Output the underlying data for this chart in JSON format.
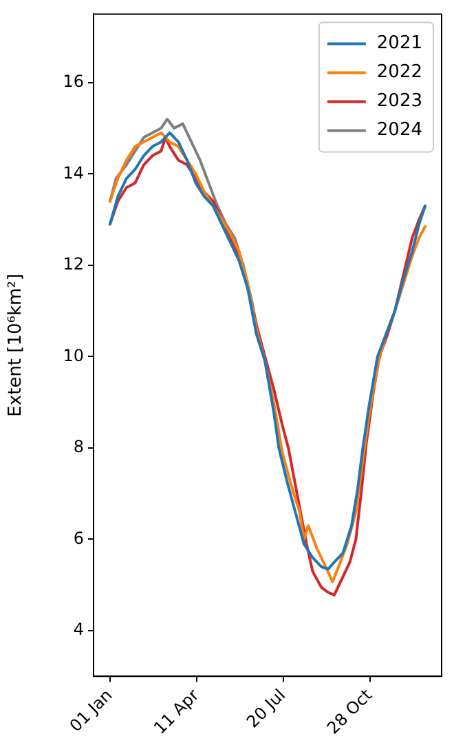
{
  "chart_data": {
    "type": "line",
    "ylabel": "Extent [10⁶km²]",
    "xlim": [
      "2020-12-13",
      "2022-01-19"
    ],
    "ylim": [
      3,
      17.5
    ],
    "xticks": [
      {
        "value": "2021-01-01",
        "label": "01 Jan"
      },
      {
        "value": "2021-04-11",
        "label": "11 Apr"
      },
      {
        "value": "2021-07-20",
        "label": "20 Jul"
      },
      {
        "value": "2021-10-28",
        "label": "28 Oct"
      }
    ],
    "yticks": [
      4,
      6,
      8,
      10,
      12,
      14,
      16
    ],
    "grid": false,
    "legend": "top right",
    "marker": "none",
    "line_style": "solid",
    "series": [
      {
        "name": "2021",
        "color": "#1f77b4",
        "x": [
          "2021-01-01",
          "2021-01-10",
          "2021-01-20",
          "2021-01-30",
          "2021-02-09",
          "2021-02-19",
          "2021-03-01",
          "2021-03-11",
          "2021-03-21",
          "2021-03-31",
          "2021-04-10",
          "2021-04-20",
          "2021-04-30",
          "2021-05-10",
          "2021-05-20",
          "2021-05-30",
          "2021-06-09",
          "2021-06-19",
          "2021-06-29",
          "2021-07-09",
          "2021-07-15",
          "2021-07-24",
          "2021-08-03",
          "2021-08-13",
          "2021-08-23",
          "2021-09-02",
          "2021-09-10",
          "2021-09-17",
          "2021-09-27",
          "2021-10-07",
          "2021-10-14",
          "2021-10-20",
          "2021-10-27",
          "2021-11-06",
          "2021-11-16",
          "2021-11-26",
          "2021-12-06",
          "2021-12-16",
          "2021-12-24",
          "2021-12-31"
        ],
        "values": [
          12.9,
          13.5,
          13.9,
          14.1,
          14.4,
          14.6,
          14.7,
          14.9,
          14.7,
          14.3,
          13.8,
          13.5,
          13.3,
          12.9,
          12.5,
          12.1,
          11.5,
          10.5,
          9.9,
          8.8,
          8.0,
          7.3,
          6.6,
          5.9,
          5.6,
          5.4,
          5.35,
          5.5,
          5.7,
          6.3,
          7.1,
          8.0,
          8.9,
          10.0,
          10.5,
          11.0,
          11.7,
          12.3,
          12.9,
          13.3
        ]
      },
      {
        "name": "2022",
        "color": "#ff7f0e",
        "x": [
          "2021-01-01",
          "2021-01-10",
          "2021-01-20",
          "2021-01-30",
          "2021-02-09",
          "2021-02-19",
          "2021-03-01",
          "2021-03-11",
          "2021-03-21",
          "2021-03-31",
          "2021-04-10",
          "2021-04-20",
          "2021-04-30",
          "2021-05-10",
          "2021-05-20",
          "2021-05-30",
          "2021-06-09",
          "2021-06-19",
          "2021-06-29",
          "2021-07-09",
          "2021-07-19",
          "2021-07-29",
          "2021-08-08",
          "2021-08-13",
          "2021-08-18",
          "2021-08-28",
          "2021-09-07",
          "2021-09-15",
          "2021-09-22",
          "2021-10-02",
          "2021-10-12",
          "2021-10-19",
          "2021-10-27",
          "2021-11-06",
          "2021-11-16",
          "2021-11-26",
          "2021-12-06",
          "2021-12-16",
          "2021-12-24",
          "2021-12-31"
        ],
        "values": [
          13.4,
          13.9,
          14.3,
          14.6,
          14.7,
          14.8,
          14.9,
          14.7,
          14.6,
          14.3,
          14.0,
          13.6,
          13.3,
          13.0,
          12.7,
          12.3,
          11.6,
          10.6,
          9.9,
          9.0,
          7.9,
          7.2,
          6.6,
          6.0,
          6.3,
          5.8,
          5.4,
          5.07,
          5.4,
          5.9,
          6.6,
          7.6,
          8.7,
          9.8,
          10.5,
          11.0,
          11.6,
          12.2,
          12.6,
          12.85
        ]
      },
      {
        "name": "2023",
        "color": "#d62728",
        "x": [
          "2021-01-01",
          "2021-01-10",
          "2021-01-20",
          "2021-01-30",
          "2021-02-09",
          "2021-02-19",
          "2021-03-01",
          "2021-03-06",
          "2021-03-11",
          "2021-03-21",
          "2021-03-31",
          "2021-04-10",
          "2021-04-20",
          "2021-04-30",
          "2021-05-10",
          "2021-05-20",
          "2021-05-30",
          "2021-06-09",
          "2021-06-19",
          "2021-06-29",
          "2021-07-09",
          "2021-07-19",
          "2021-07-26",
          "2021-08-03",
          "2021-08-10",
          "2021-08-16",
          "2021-08-23",
          "2021-09-02",
          "2021-09-09",
          "2021-09-17",
          "2021-09-25",
          "2021-10-05",
          "2021-10-12",
          "2021-10-18",
          "2021-10-24",
          "2021-11-01",
          "2021-11-08",
          "2021-11-16",
          "2021-11-26",
          "2021-12-06",
          "2021-12-16",
          "2021-12-24",
          "2021-12-31"
        ],
        "values": [
          12.9,
          13.4,
          13.7,
          13.8,
          14.2,
          14.4,
          14.5,
          14.8,
          14.6,
          14.3,
          14.2,
          13.9,
          13.6,
          13.4,
          13.0,
          12.6,
          12.2,
          11.5,
          10.7,
          10.0,
          9.3,
          8.5,
          8.0,
          7.2,
          6.5,
          5.9,
          5.3,
          4.95,
          4.85,
          4.78,
          5.1,
          5.5,
          6.0,
          7.0,
          8.1,
          9.2,
          10.0,
          10.4,
          11.0,
          11.8,
          12.6,
          13.0,
          13.3
        ]
      },
      {
        "name": "2024",
        "color": "#7f7f7f",
        "x": [
          "2021-01-01",
          "2021-01-08",
          "2021-01-20",
          "2021-01-30",
          "2021-02-09",
          "2021-02-19",
          "2021-03-01",
          "2021-03-08",
          "2021-03-16",
          "2021-03-26",
          "2021-04-05",
          "2021-04-15",
          "2021-04-25",
          "2021-05-05",
          "2021-05-15",
          "2021-05-25",
          "2021-06-04",
          "2021-06-14",
          "2021-06-21"
        ],
        "values": [
          13.4,
          13.9,
          14.2,
          14.5,
          14.8,
          14.9,
          15.0,
          15.2,
          15.0,
          15.1,
          14.7,
          14.3,
          13.8,
          13.3,
          12.9,
          12.6,
          12.0,
          11.2,
          10.5
        ]
      }
    ]
  }
}
